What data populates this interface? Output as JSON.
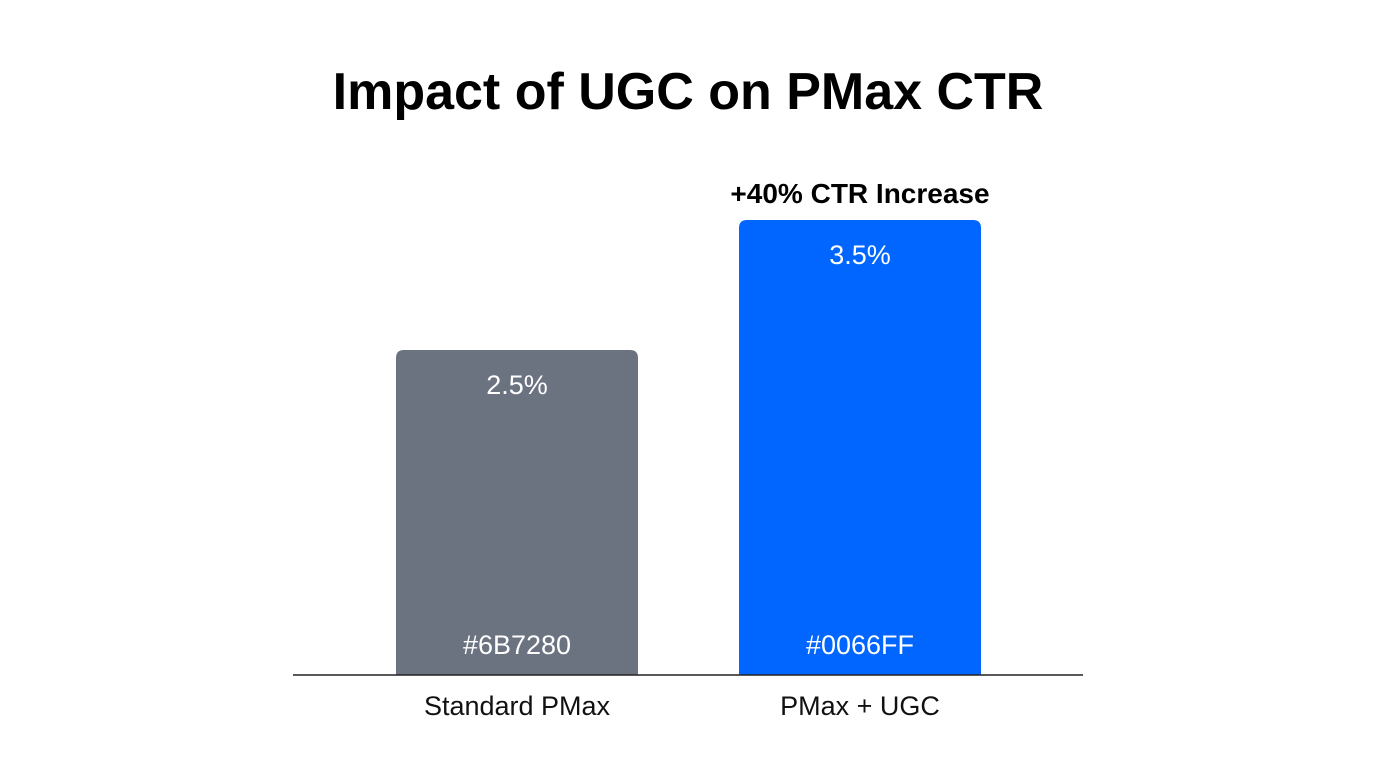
{
  "chart_data": {
    "type": "bar",
    "title": "Impact of UGC on PMax CTR",
    "categories": [
      "Standard PMax",
      "PMax + UGC"
    ],
    "values": [
      2.5,
      3.5
    ],
    "value_labels": [
      "2.5%",
      "3.5%"
    ],
    "bar_color_labels": [
      "#6B7280",
      "#0066FF"
    ],
    "colors": [
      "#6B7280",
      "#0066FF"
    ],
    "annotation": "+40% CTR Increase",
    "xlabel": "",
    "ylabel": "",
    "ylim": [
      0,
      3.5
    ],
    "grid": false
  }
}
